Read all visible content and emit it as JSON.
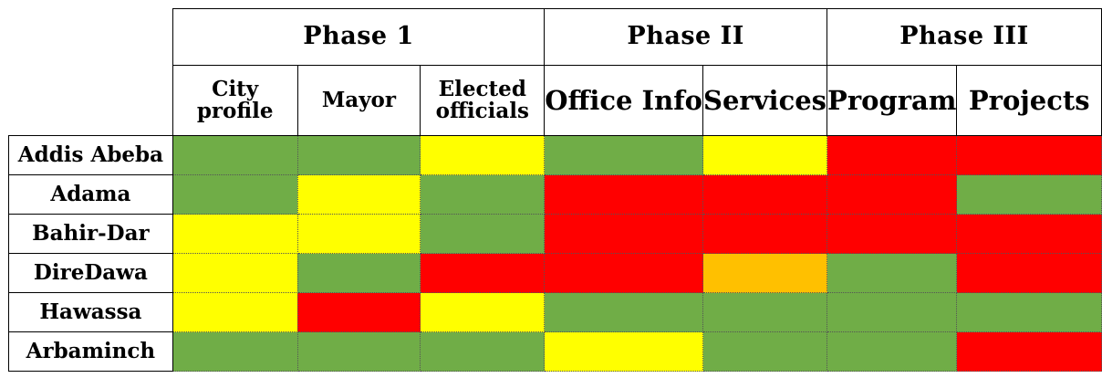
{
  "chart_data": {
    "type": "heatmap",
    "phases": [
      {
        "label": "Phase 1",
        "span": 3
      },
      {
        "label": "Phase II",
        "span": 2
      },
      {
        "label": "Phase III",
        "span": 2
      }
    ],
    "columns": [
      {
        "label": "City\nprofile",
        "size": "small"
      },
      {
        "label": "Mayor",
        "size": "small"
      },
      {
        "label": "Elected\nofficials",
        "size": "small"
      },
      {
        "label": "Office Info",
        "size": "big"
      },
      {
        "label": "Services",
        "size": "big"
      },
      {
        "label": "Program",
        "size": "big"
      },
      {
        "label": "Projects",
        "size": "big"
      }
    ],
    "rows": [
      "Addis Abeba",
      "Adama",
      "Bahir-Dar",
      "DireDawa",
      "Hawassa",
      "Arbaminch"
    ],
    "values": [
      [
        "green",
        "green",
        "yellow",
        "green",
        "yellow",
        "red",
        "red"
      ],
      [
        "green",
        "yellow",
        "green",
        "red",
        "red",
        "red",
        "green"
      ],
      [
        "yellow",
        "yellow",
        "green",
        "red",
        "red",
        "red",
        "red"
      ],
      [
        "yellow",
        "green",
        "red",
        "red",
        "orange",
        "green",
        "red"
      ],
      [
        "yellow",
        "red",
        "yellow",
        "green",
        "green",
        "green",
        "green"
      ],
      [
        "green",
        "green",
        "green",
        "yellow",
        "green",
        "green",
        "red"
      ]
    ],
    "colors": {
      "green": "#70AD47",
      "yellow": "#FFFF00",
      "red": "#FF0000",
      "orange": "#FFC000"
    }
  }
}
